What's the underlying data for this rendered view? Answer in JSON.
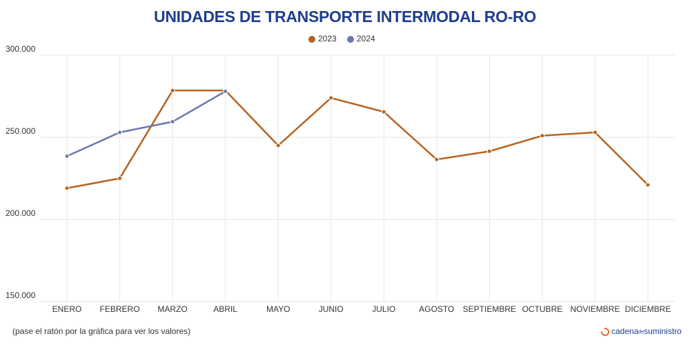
{
  "chart_data": {
    "type": "line",
    "title": "UNIDADES DE TRANSPORTE INTERMODAL RO-RO",
    "categories": [
      "ENERO",
      "FEBRERO",
      "MARZO",
      "ABRIL",
      "MAYO",
      "JUNIO",
      "JULIO",
      "AGOSTO",
      "SEPTIEMBRE",
      "OCTUBRE",
      "NOVIEMBRE",
      "DICIEMBRE"
    ],
    "series": [
      {
        "name": "2023",
        "color": "#b5621e",
        "values": [
          219000,
          225000,
          278500,
          278500,
          245000,
          274000,
          265500,
          236500,
          241500,
          251000,
          253000,
          221000
        ]
      },
      {
        "name": "2024",
        "color": "#6a7aae",
        "values": [
          238500,
          253000,
          259500,
          278000,
          null,
          null,
          null,
          null,
          null,
          null,
          null,
          null
        ]
      }
    ],
    "ylim": [
      150000,
      300000
    ],
    "yticks": [
      {
        "value": 150000,
        "label": "150.000"
      },
      {
        "value": 200000,
        "label": "200.000"
      },
      {
        "value": 250000,
        "label": "250.000"
      },
      {
        "value": 300000,
        "label": "300.000"
      }
    ],
    "grid": true,
    "legend": "top",
    "footnote": "(pase el ratón por la gráfica para ver los valores)",
    "brand": {
      "name": "cadena",
      "small": "de",
      "rest": "suministro"
    }
  }
}
